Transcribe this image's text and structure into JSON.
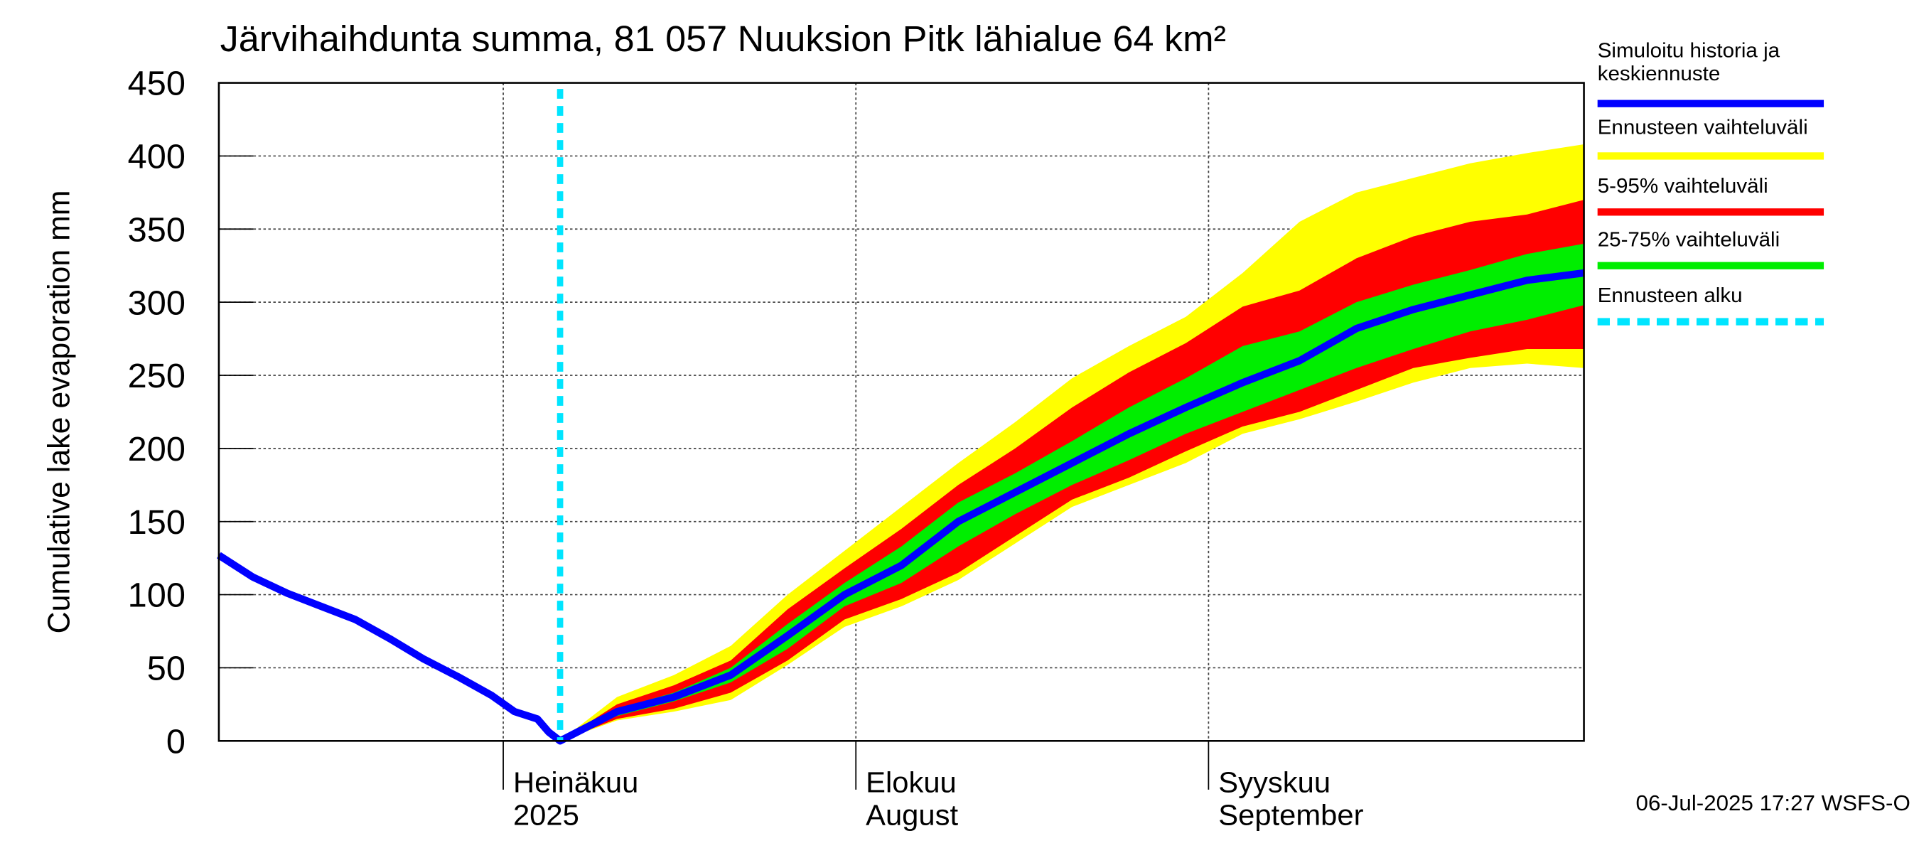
{
  "chart_data": {
    "type": "fan",
    "title": "Järvihaihdunta summa, 81 057 Nuuksion Pitk lähialue 64 km²",
    "ylabel": "Cumulative lake evaporation   mm",
    "footer": "06-Jul-2025 17:27 WSFS-O",
    "xlim": [
      157,
      277
    ],
    "xticks": [
      {
        "value": 182,
        "label": "Heinäkuu"
      },
      {
        "value": 213,
        "label": "Elokuu"
      },
      {
        "value": 244,
        "label": "Syyskuu"
      }
    ],
    "xtick_sublabels": [
      "2025",
      "August",
      "September"
    ],
    "ylim": [
      0,
      450
    ],
    "yticks": [
      0,
      50,
      100,
      150,
      200,
      250,
      300,
      350,
      400,
      450
    ],
    "grid": true,
    "bands": [
      {
        "name": "Ennusteen vaihteluväli",
        "color": "#ffff00",
        "x": [
          187,
          192,
          197,
          202,
          207,
          212,
          217,
          222,
          227,
          232,
          237,
          242,
          247,
          252,
          257,
          262,
          267,
          272,
          277
        ],
        "upper": [
          0,
          30,
          45,
          65,
          100,
          130,
          160,
          190,
          218,
          248,
          270,
          290,
          320,
          355,
          375,
          385,
          395,
          402,
          408
        ],
        "lower": [
          0,
          14,
          20,
          28,
          52,
          78,
          92,
          110,
          135,
          160,
          175,
          190,
          210,
          220,
          232,
          245,
          255,
          258,
          255
        ]
      },
      {
        "name": "5-95% vaihteluväli",
        "color": "#ff0000",
        "x": [
          187,
          192,
          197,
          202,
          207,
          212,
          217,
          222,
          227,
          232,
          237,
          242,
          247,
          252,
          257,
          262,
          267,
          272,
          277
        ],
        "upper": [
          0,
          25,
          38,
          55,
          90,
          118,
          145,
          175,
          200,
          228,
          252,
          272,
          297,
          308,
          330,
          345,
          355,
          360,
          370
        ],
        "lower": [
          0,
          15,
          22,
          33,
          55,
          83,
          97,
          115,
          140,
          165,
          180,
          198,
          215,
          225,
          240,
          255,
          262,
          268,
          268
        ]
      },
      {
        "name": "25-75% vaihteluväli",
        "color": "#00ee00",
        "x": [
          187,
          192,
          197,
          202,
          207,
          212,
          217,
          222,
          227,
          232,
          237,
          242,
          247,
          252,
          257,
          262,
          267,
          272,
          277
        ],
        "upper": [
          0,
          22,
          33,
          50,
          80,
          108,
          133,
          163,
          183,
          205,
          228,
          248,
          270,
          280,
          300,
          312,
          322,
          333,
          340
        ],
        "lower": [
          0,
          17,
          27,
          40,
          63,
          92,
          108,
          133,
          155,
          175,
          192,
          210,
          225,
          240,
          255,
          268,
          280,
          288,
          298
        ]
      }
    ],
    "series": [
      {
        "name": "Simuloitu historia ja keskiennuste",
        "color": "#0000ff",
        "x": [
          157,
          160,
          163,
          166,
          169,
          172,
          175,
          178,
          181,
          183,
          185,
          186,
          187,
          192,
          197,
          202,
          207,
          212,
          217,
          222,
          227,
          232,
          237,
          242,
          247,
          252,
          257,
          262,
          267,
          272,
          277
        ],
        "values": [
          127,
          112,
          101,
          92,
          83,
          70,
          56,
          44,
          31,
          20,
          15,
          6,
          0,
          20,
          30,
          45,
          72,
          100,
          120,
          150,
          170,
          190,
          210,
          228,
          245,
          260,
          282,
          295,
          305,
          315,
          320
        ]
      }
    ],
    "forecast_start": {
      "name": "Ennusteen alku",
      "x": 187,
      "color": "#00e5ff"
    }
  }
}
